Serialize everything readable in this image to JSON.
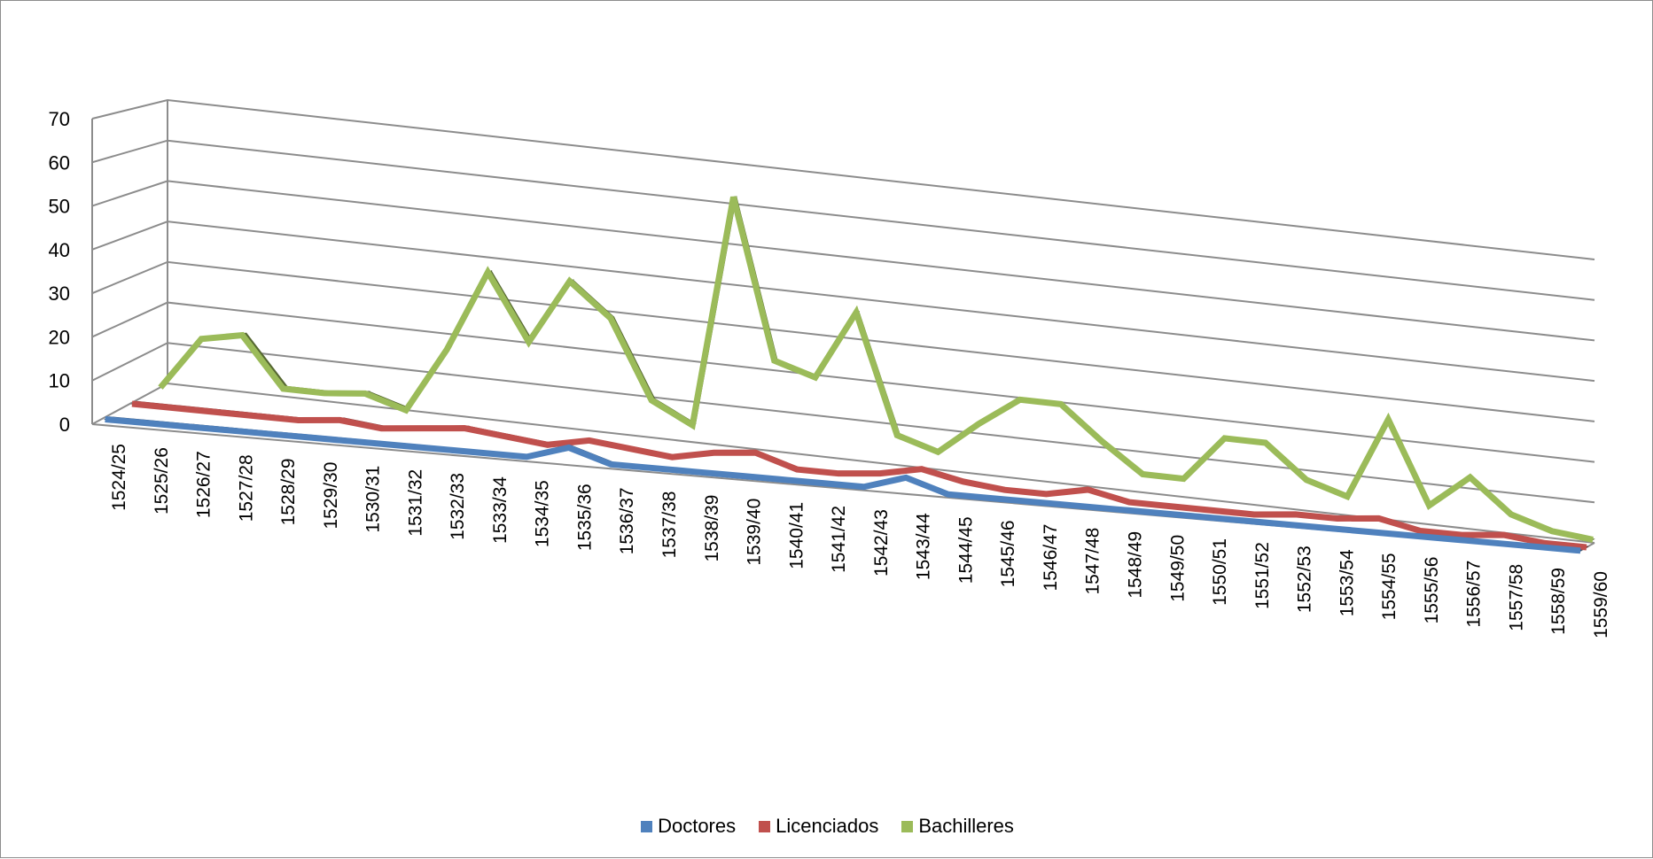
{
  "chart_data": {
    "type": "line",
    "style": "3d-line",
    "title": "",
    "xlabel": "",
    "ylabel": "",
    "ylim": [
      0,
      70
    ],
    "yticks": [
      0,
      10,
      20,
      30,
      40,
      50,
      60,
      70
    ],
    "grid": true,
    "legend_position": "bottom",
    "categories": [
      "1524/25",
      "1525/26",
      "1526/27",
      "1527/28",
      "1528/29",
      "1529/30",
      "1530/31",
      "1531/32",
      "1532/33",
      "1533/34",
      "1534/35",
      "1535/36",
      "1536/37",
      "1537/38",
      "1538/39",
      "1539/40",
      "1540/41",
      "1541/42",
      "1542/43",
      "1543/44",
      "1544/45",
      "1545/46",
      "1546/47",
      "1547/48",
      "1548/49",
      "1549/50",
      "1550/51",
      "1551/52",
      "1552/53",
      "1553/54",
      "1554/55",
      "1555/56",
      "1556/57",
      "1557/58",
      "1558/59",
      "1559/60"
    ],
    "series": [
      {
        "name": "Doctores",
        "color": "#4f81bd",
        "values": [
          0,
          0,
          0,
          0,
          0,
          0,
          0,
          0,
          0,
          0,
          0,
          3,
          0,
          0,
          0,
          0,
          0,
          0,
          0,
          3,
          0,
          0,
          0,
          0,
          0,
          0,
          0,
          0,
          0,
          0,
          0,
          0,
          0,
          0,
          0,
          0
        ]
      },
      {
        "name": "Licenciados",
        "color": "#c0504d",
        "values": [
          0,
          0,
          0,
          0,
          0,
          1,
          0,
          1,
          2,
          1,
          0,
          2,
          1,
          0,
          2,
          3,
          0,
          0,
          1,
          3,
          1,
          0,
          0,
          2,
          0,
          0,
          0,
          0,
          1,
          1,
          2,
          0,
          0,
          1,
          0,
          0
        ]
      },
      {
        "name": "Bachilleres",
        "color": "#9bbb59",
        "values": [
          0,
          13,
          15,
          3,
          3,
          4,
          1,
          17,
          37,
          21,
          37,
          29,
          10,
          5,
          62,
          23,
          20,
          37,
          8,
          5,
          13,
          20,
          20,
          12,
          5,
          5,
          16,
          16,
          8,
          5,
          25,
          5,
          13,
          5,
          2,
          1
        ]
      }
    ]
  },
  "legend": {
    "items": [
      {
        "label": "Doctores",
        "color": "#4f81bd"
      },
      {
        "label": "Licenciados",
        "color": "#c0504d"
      },
      {
        "label": "Bachilleres",
        "color": "#9bbb59"
      }
    ]
  }
}
